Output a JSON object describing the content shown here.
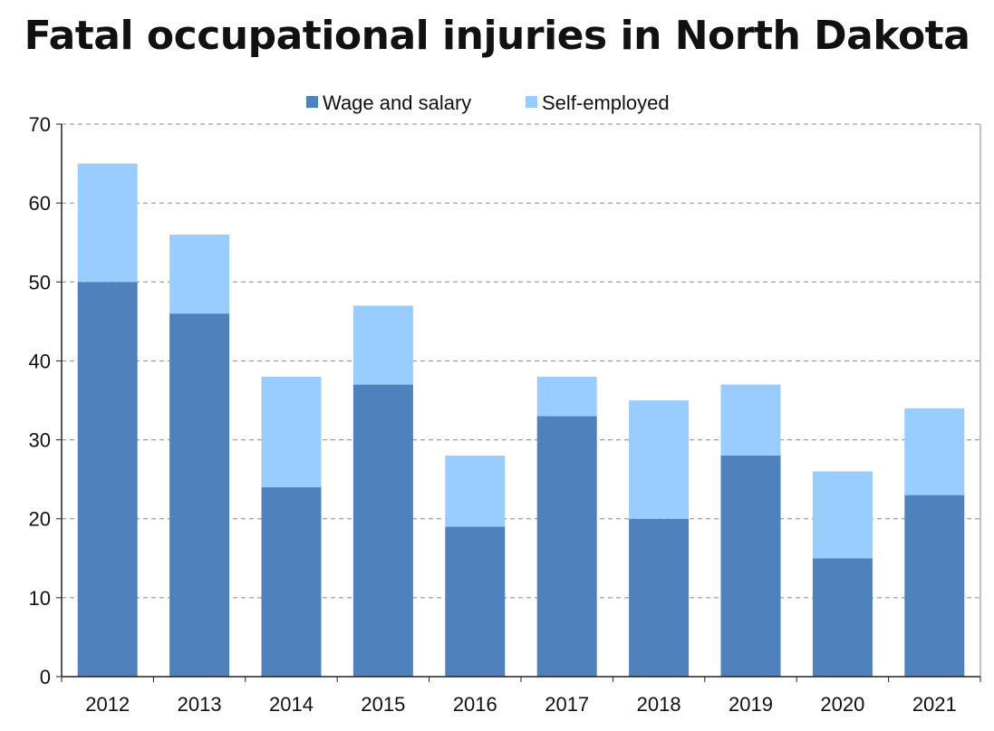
{
  "chart_data": {
    "type": "bar",
    "stacked": true,
    "title": "Fatal occupational injuries in North Dakota",
    "categories": [
      "2012",
      "2013",
      "2014",
      "2015",
      "2016",
      "2017",
      "2018",
      "2019",
      "2020",
      "2021"
    ],
    "series": [
      {
        "name": "Wage and salary",
        "color": "#4f81bd",
        "values": [
          50,
          46,
          24,
          37,
          19,
          33,
          20,
          28,
          15,
          23
        ]
      },
      {
        "name": "Self-employed",
        "color": "#99ccff",
        "values": [
          15,
          10,
          14,
          10,
          9,
          5,
          15,
          9,
          11,
          11
        ]
      }
    ],
    "ylim": [
      0,
      70
    ],
    "yticks": [
      0,
      10,
      20,
      30,
      40,
      50,
      60,
      70
    ],
    "grid": "horizontal-dashed",
    "legend_position": "top-center",
    "xlabel": "",
    "ylabel": ""
  }
}
